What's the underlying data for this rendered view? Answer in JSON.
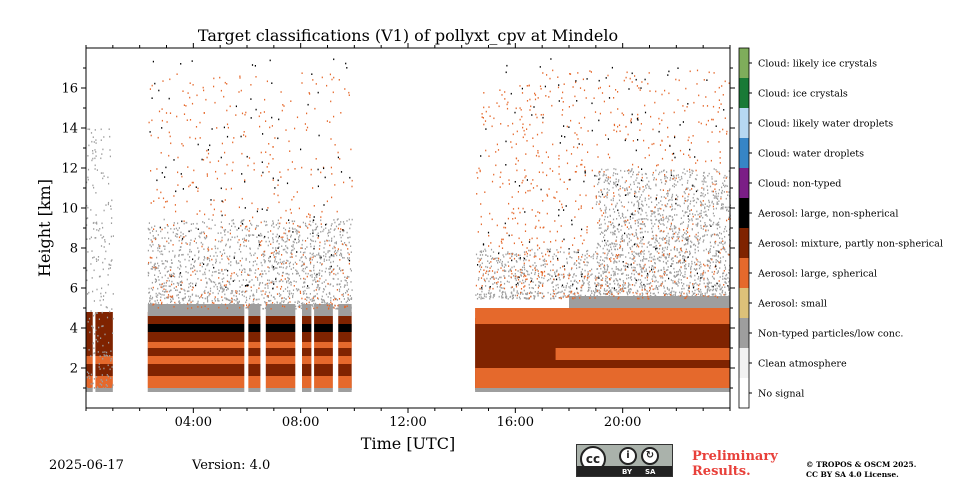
{
  "chart_data": {
    "type": "heatmap",
    "title": "Target classifications (V1) of pollyxt_cpv at Mindelo",
    "xlabel": "Time [UTC]",
    "ylabel": "Height [km]",
    "xlim": [
      0,
      24
    ],
    "ylim": [
      0,
      18
    ],
    "x_ticks": [
      "04:00",
      "08:00",
      "12:00",
      "16:00",
      "20:00"
    ],
    "x_tick_values": [
      4,
      8,
      12,
      16,
      20
    ],
    "y_ticks": [
      "2",
      "4",
      "6",
      "8",
      "10",
      "12",
      "14",
      "16"
    ],
    "y_tick_values": [
      2,
      4,
      6,
      8,
      10,
      12,
      14,
      16
    ],
    "data_gap_hours": [
      9.9,
      14.5
    ],
    "legend": [
      {
        "label": "Cloud: likely ice crystals",
        "color": "#7fad5b"
      },
      {
        "label": "Cloud: ice crystals",
        "color": "#197a36"
      },
      {
        "label": "Cloud: likely water droplets",
        "color": "#b6d8f2"
      },
      {
        "label": "Cloud: water droplets",
        "color": "#3685c6"
      },
      {
        "label": "Cloud: non-typed",
        "color": "#7b1e86"
      },
      {
        "label": "Aerosol: large, non-spherical",
        "color": "#000000"
      },
      {
        "label": "Aerosol: mixture, partly non-spherical",
        "color": "#7f2300"
      },
      {
        "label": "Aerosol: large, spherical",
        "color": "#e5692c"
      },
      {
        "label": "Aerosol: small",
        "color": "#ddc179"
      },
      {
        "label": "Non-typed particles/low conc.",
        "color": "#9e9e9e"
      },
      {
        "label": "Clean atmosphere",
        "color": "#f2f2f2"
      },
      {
        "label": "No signal",
        "color": "#ffffff"
      }
    ]
  },
  "footer": {
    "date": "2025-06-17",
    "version": "Version: 4.0",
    "preliminary_line1": "Preliminary",
    "preliminary_line2": "Results.",
    "license_line1": "© TROPOS & OSCM 2025.",
    "license_line2": "CC BY SA 4.0 License.",
    "cc_by": "BY",
    "cc_sa": "SA",
    "cc_mark": "cc"
  }
}
